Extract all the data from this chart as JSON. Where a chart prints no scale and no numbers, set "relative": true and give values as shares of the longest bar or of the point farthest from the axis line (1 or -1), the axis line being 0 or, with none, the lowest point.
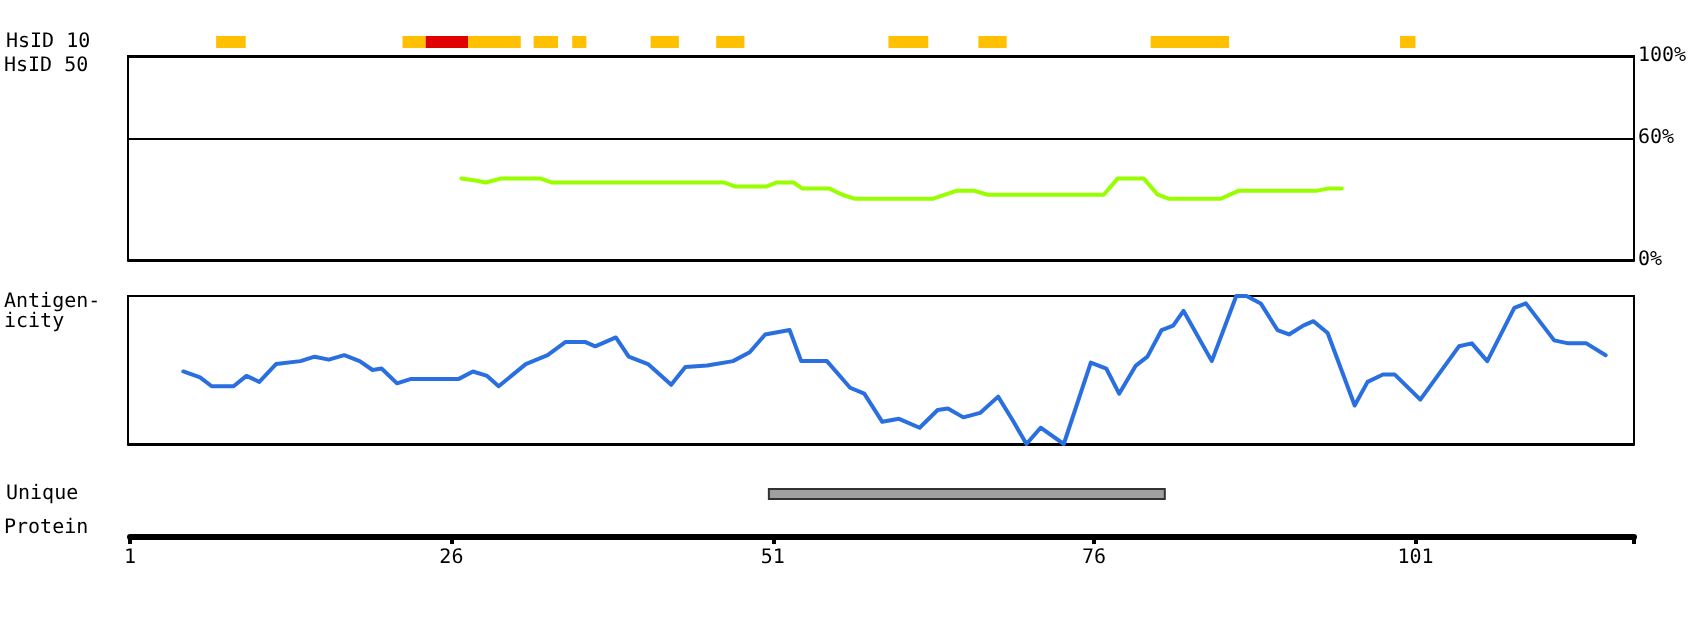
{
  "chart_data": [
    {
      "type": "bar",
      "orientation": "horizontal",
      "categories": [
        "HsID 10"
      ],
      "xticks": [
        1,
        26,
        51,
        76,
        101
      ],
      "tick_labels": "y",
      "series": [
        {
          "color": "#ffc000",
          "base": [
            7.7
          ],
          "values": [
            2.3
          ]
        },
        {
          "color": "#ffc000",
          "base": [
            22.2
          ],
          "values": [
            1.8
          ]
        },
        {
          "color": "#e00000",
          "base": [
            24.0
          ],
          "values": [
            3.3
          ]
        },
        {
          "color": "#ffc000",
          "base": [
            27.3
          ],
          "values": [
            4.1
          ]
        },
        {
          "color": "#ffc000",
          "base": [
            32.4
          ],
          "values": [
            1.9
          ]
        },
        {
          "color": "#ffc000",
          "base": [
            35.4
          ],
          "values": [
            1.1
          ]
        },
        {
          "color": "#ffc000",
          "base": [
            41.5
          ],
          "values": [
            2.2
          ]
        },
        {
          "color": "#ffc000",
          "base": [
            46.6
          ],
          "values": [
            2.2
          ]
        },
        {
          "color": "#ffc000",
          "base": [
            60.0
          ],
          "values": [
            3.1
          ]
        },
        {
          "color": "#ffc000",
          "base": [
            67.0
          ],
          "values": [
            2.2
          ]
        },
        {
          "color": "#ffc000",
          "base": [
            80.4
          ],
          "values": [
            6.1
          ]
        },
        {
          "color": "#ffc000",
          "base": [
            99.8
          ],
          "values": [
            1.2
          ]
        }
      ]
    },
    {
      "type": "line",
      "ylabel": "HsID 50",
      "xlim": [
        1,
        118
      ],
      "ylim": [
        0,
        100
      ],
      "yticks": [
        {
          "value": 0,
          "label": "0%"
        },
        {
          "value": 60,
          "label": "60%"
        },
        {
          "value": 100,
          "label": "100%"
        }
      ],
      "grid": "y",
      "tick_labels": "y",
      "marker": "none",
      "series": [
        {
          "color": "#99ff00",
          "x": [
            26.9,
            28.0,
            28.8,
            30.0,
            33.0,
            33.9,
            47.3,
            48.2,
            50.6,
            51.4,
            52.7,
            53.4,
            55.5,
            56.5,
            57.5,
            63.5,
            65.4,
            66.7,
            67.8,
            76.8,
            77.9,
            79.9,
            81.0,
            81.9,
            85.9,
            87.3,
            93.4,
            94.2,
            95.3
          ],
          "values": [
            40,
            39,
            38,
            40,
            40,
            38,
            38,
            36,
            36,
            38,
            38,
            35,
            35,
            32,
            30,
            30,
            34,
            34,
            32,
            32,
            40,
            40,
            32,
            30,
            30,
            34,
            34,
            35,
            35
          ]
        }
      ]
    },
    {
      "type": "line",
      "ylabel": "Antigen-\nicity",
      "xlim": [
        1,
        118
      ],
      "relative": true,
      "tick_labels": false,
      "marker": "none",
      "series": [
        {
          "color": "#2a6fe0",
          "x": [
            5.3,
            6.6,
            7.5,
            9.2,
            10.2,
            11.2,
            12.5,
            14.4,
            15.5,
            16.6,
            17.8,
            19.0,
            20.0,
            20.7,
            21.9,
            23.0,
            26.7,
            27.8,
            28.9,
            29.8,
            31.9,
            33.6,
            35.0,
            36.5,
            37.3,
            38.9,
            39.9,
            41.4,
            43.2,
            44.3,
            46.0,
            48.0,
            49.3,
            50.5,
            52.4,
            53.3,
            55.3,
            57.1,
            58.2,
            59.6,
            60.9,
            62.5,
            63.9,
            64.7,
            65.9,
            67.2,
            68.6,
            69.8,
            70.8,
            71.9,
            73.7,
            75.8,
            77.0,
            78.0,
            79.3,
            80.2,
            81.3,
            82.2,
            83.0,
            85.2,
            87.1,
            87.9,
            89.0,
            90.3,
            91.2,
            92.3,
            93.1,
            94.2,
            96.3,
            97.3,
            98.5,
            99.4,
            101.4,
            104.4,
            105.4,
            106.6,
            108.7,
            109.6,
            111.8,
            112.9,
            114.3,
            115.8
          ],
          "values": [
            0.49,
            0.45,
            0.39,
            0.39,
            0.46,
            0.42,
            0.54,
            0.56,
            0.59,
            0.57,
            0.6,
            0.56,
            0.5,
            0.51,
            0.41,
            0.44,
            0.44,
            0.49,
            0.46,
            0.39,
            0.54,
            0.6,
            0.69,
            0.69,
            0.66,
            0.72,
            0.59,
            0.54,
            0.4,
            0.52,
            0.53,
            0.56,
            0.62,
            0.74,
            0.77,
            0.56,
            0.56,
            0.38,
            0.34,
            0.15,
            0.17,
            0.11,
            0.23,
            0.24,
            0.18,
            0.21,
            0.32,
            0.15,
            0.0,
            0.11,
            0.0,
            0.55,
            0.51,
            0.34,
            0.53,
            0.59,
            0.77,
            0.8,
            0.9,
            0.56,
            1.0,
            1.0,
            0.95,
            0.77,
            0.74,
            0.8,
            0.83,
            0.75,
            0.26,
            0.42,
            0.47,
            0.47,
            0.3,
            0.66,
            0.68,
            0.56,
            0.92,
            0.95,
            0.7,
            0.68,
            0.68,
            0.6
          ]
        }
      ]
    },
    {
      "type": "bar",
      "orientation": "horizontal",
      "categories": [
        "Unique"
      ],
      "xlabel": "Protein",
      "xlim": [
        1,
        118
      ],
      "xticks": [
        1,
        26,
        51,
        76,
        101,
        {
          "value": 118,
          "label": null
        }
      ],
      "series": [
        {
          "color": "#a0a0a0",
          "base": [
            50.7
          ],
          "values": [
            30.8
          ]
        }
      ]
    }
  ]
}
